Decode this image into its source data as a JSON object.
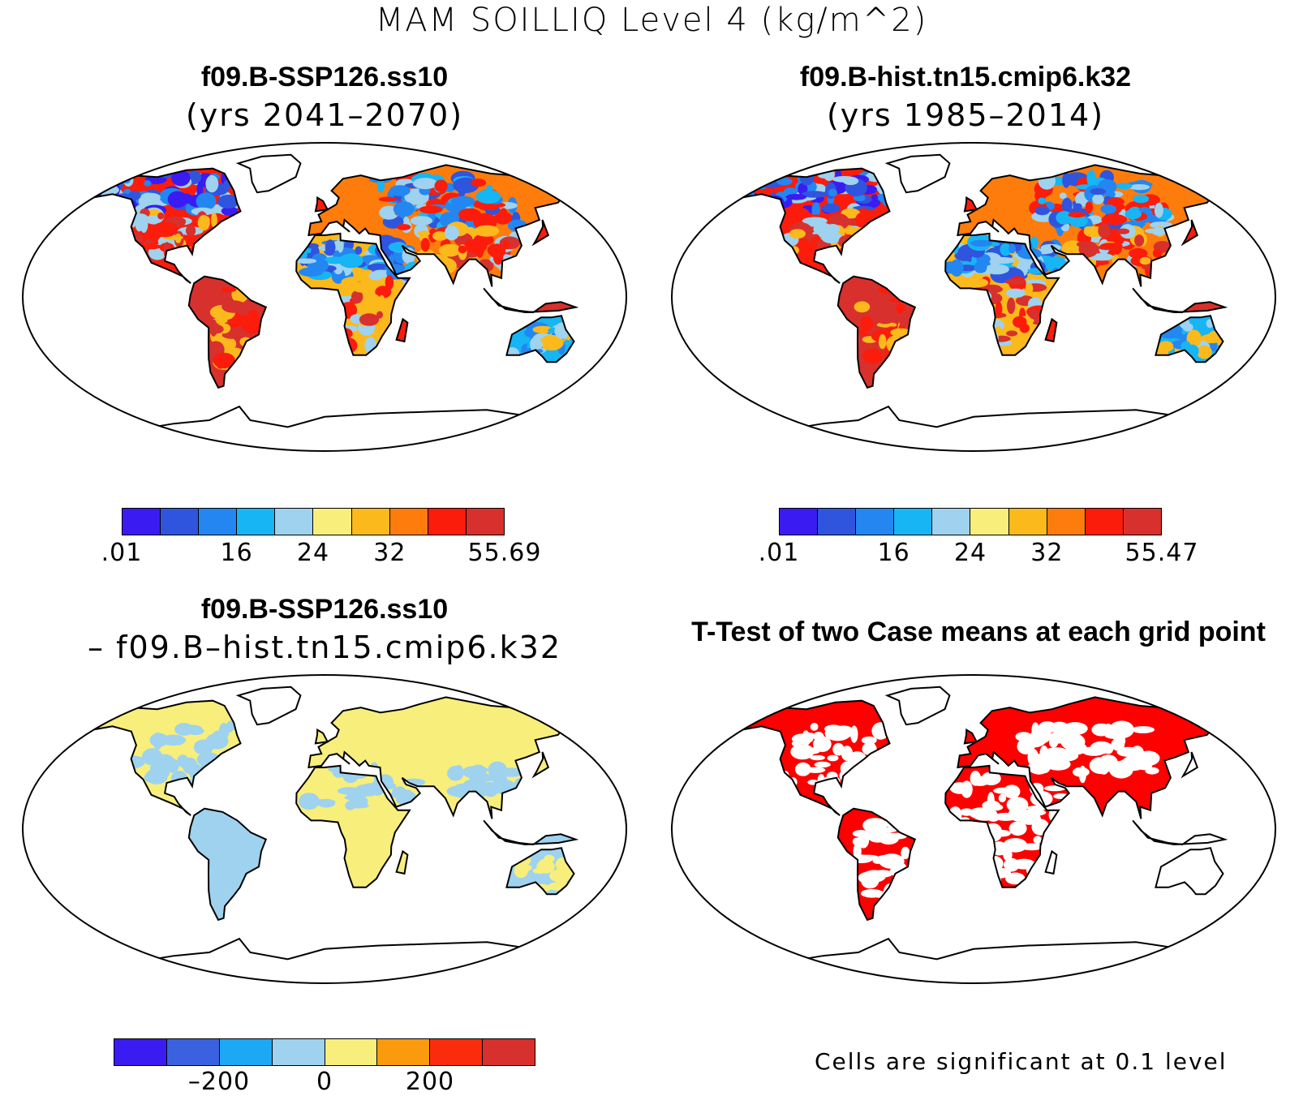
{
  "figure": {
    "title": "MAM SOILLIQ Level 4 (kg/m^2)"
  },
  "colors": {
    "abs_scale": [
      "#3a1cf2",
      "#2f55de",
      "#2486f0",
      "#17b5f4",
      "#9ed2ee",
      "#f8ee7c",
      "#fbb91c",
      "#fd7c0c",
      "#fb1c0c",
      "#d8302c"
    ],
    "diff_scale": [
      "#3a1cf2",
      "#3a62e0",
      "#1ca8f4",
      "#9ed2ee",
      "#f8ee7c",
      "#fb9a0c",
      "#fb2c0c",
      "#d8302c"
    ],
    "significance": "#ff0000",
    "coastline": "#000000"
  },
  "panels": {
    "top_left": {
      "title": "f09.B-SSP126.ss10",
      "subtitle": "(yrs 2041–2070)",
      "colorbar_ticks": [
        ".01",
        "16",
        "24",
        "32",
        "55.69"
      ],
      "fill": "warm"
    },
    "top_right": {
      "title": "f09.B-hist.tn15.cmip6.k32",
      "subtitle": "(yrs 1985–2014)",
      "colorbar_ticks": [
        ".01",
        "16",
        "24",
        "32",
        "55.47"
      ],
      "fill": "warm"
    },
    "bottom_left": {
      "title": "f09.B-SSP126.ss10",
      "subtitle": "– f09.B–hist.tn15.cmip6.k32",
      "colorbar_ticks": [
        "–200",
        "0",
        "200"
      ],
      "fill": "diff"
    },
    "bottom_right": {
      "title": "T-Test of two Case means at each grid point",
      "note": "Cells are significant at 0.1 level",
      "fill": "ttest"
    }
  }
}
